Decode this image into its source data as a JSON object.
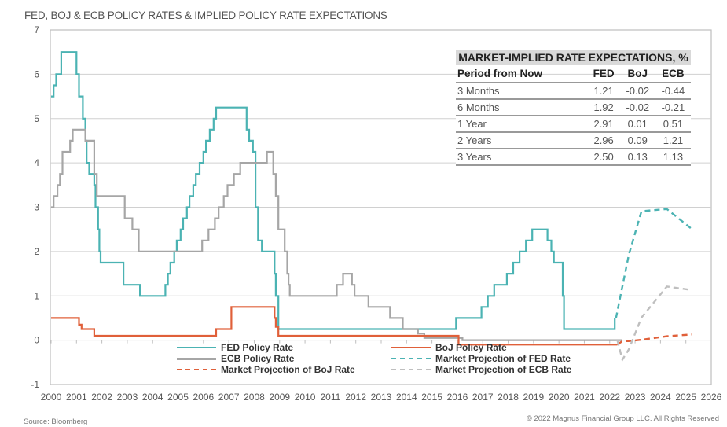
{
  "title": "FED, BOJ & ECB POLICY RATES & IMPLIED POLICY RATE EXPECTATIONS",
  "source": "Source: Bloomberg",
  "copyright": "© 2022 Magnus Financial Group LLC. All Rights Reserved",
  "colors": {
    "fed": "#4bb3b3",
    "ecb": "#a6a6a6",
    "boj": "#e0603a",
    "grid": "#d0d0d0",
    "axis": "#bfbfbf"
  },
  "table": {
    "title": "MARKET-IMPLIED RATE EXPECTATIONS, %",
    "columns": [
      "Period from Now",
      "FED",
      "BoJ",
      "ECB"
    ],
    "rows": [
      [
        "3 Months",
        "1.21",
        "-0.02",
        "-0.44"
      ],
      [
        "6 Months",
        "1.92",
        "-0.02",
        "-0.21"
      ],
      [
        "1 Year",
        "2.91",
        "0.01",
        "0.51"
      ],
      [
        "2 Years",
        "2.96",
        "0.09",
        "1.21"
      ],
      [
        "3 Years",
        "2.50",
        "0.13",
        "1.13"
      ]
    ]
  },
  "chart_data": {
    "type": "line",
    "title": "FED, BOJ & ECB POLICY RATES & IMPLIED POLICY RATE EXPECTATIONS",
    "xlabel": "",
    "ylabel": "",
    "xlim": [
      2000,
      2026
    ],
    "ylim": [
      -1,
      7
    ],
    "x_ticks": [
      "2000",
      "2001",
      "2002",
      "2003",
      "2004",
      "2005",
      "2006",
      "2007",
      "2008",
      "2009",
      "2010",
      "2011",
      "2012",
      "2013",
      "2014",
      "2015",
      "2016",
      "2017",
      "2018",
      "2019",
      "2020",
      "2021",
      "2022",
      "2023",
      "2024",
      "2025",
      "2026"
    ],
    "y_ticks": [
      "7",
      "6",
      "5",
      "4",
      "3",
      "2",
      "1",
      "0",
      "-1"
    ],
    "y_tick_values": [
      7,
      6,
      5,
      4,
      3,
      2,
      1,
      0,
      -1
    ],
    "grid": true,
    "legend": {
      "placement": "bottom-center",
      "entries": [
        "FED Policy Rate",
        "BoJ Policy Rate",
        "ECB Policy Rate",
        "Market Projection of FED Rate",
        "Market Projection of BoJ Rate",
        "Market Projection of ECB Rate"
      ]
    },
    "series": [
      {
        "name": "FED Policy Rate",
        "style": "step",
        "color": "#4bb3b3",
        "points": [
          [
            2000.0,
            5.5
          ],
          [
            2000.1,
            5.75
          ],
          [
            2000.2,
            6.0
          ],
          [
            2000.4,
            6.5
          ],
          [
            2001.0,
            6.0
          ],
          [
            2001.1,
            5.5
          ],
          [
            2001.25,
            5.0
          ],
          [
            2001.35,
            4.5
          ],
          [
            2001.4,
            4.0
          ],
          [
            2001.5,
            3.75
          ],
          [
            2001.7,
            3.5
          ],
          [
            2001.75,
            3.0
          ],
          [
            2001.85,
            2.5
          ],
          [
            2001.9,
            2.0
          ],
          [
            2001.95,
            1.75
          ],
          [
            2002.85,
            1.25
          ],
          [
            2003.5,
            1.0
          ],
          [
            2004.5,
            1.25
          ],
          [
            2004.6,
            1.5
          ],
          [
            2004.7,
            1.75
          ],
          [
            2004.85,
            2.0
          ],
          [
            2004.95,
            2.25
          ],
          [
            2005.1,
            2.5
          ],
          [
            2005.2,
            2.75
          ],
          [
            2005.35,
            3.0
          ],
          [
            2005.45,
            3.25
          ],
          [
            2005.6,
            3.5
          ],
          [
            2005.7,
            3.75
          ],
          [
            2005.85,
            4.0
          ],
          [
            2006.0,
            4.25
          ],
          [
            2006.1,
            4.5
          ],
          [
            2006.25,
            4.75
          ],
          [
            2006.4,
            5.0
          ],
          [
            2006.5,
            5.25
          ],
          [
            2007.7,
            4.75
          ],
          [
            2007.8,
            4.5
          ],
          [
            2007.95,
            4.25
          ],
          [
            2008.05,
            3.0
          ],
          [
            2008.15,
            2.25
          ],
          [
            2008.3,
            2.0
          ],
          [
            2008.8,
            1.5
          ],
          [
            2008.85,
            1.0
          ],
          [
            2008.95,
            0.25
          ],
          [
            2015.95,
            0.5
          ],
          [
            2016.95,
            0.75
          ],
          [
            2017.2,
            1.0
          ],
          [
            2017.45,
            1.25
          ],
          [
            2017.95,
            1.5
          ],
          [
            2018.2,
            1.75
          ],
          [
            2018.45,
            2.0
          ],
          [
            2018.7,
            2.25
          ],
          [
            2018.95,
            2.5
          ],
          [
            2019.55,
            2.25
          ],
          [
            2019.7,
            2.0
          ],
          [
            2019.8,
            1.75
          ],
          [
            2020.15,
            1.0
          ],
          [
            2020.2,
            0.25
          ],
          [
            2022.2,
            0.5
          ]
        ]
      },
      {
        "name": "ECB Policy Rate",
        "style": "step",
        "color": "#a6a6a6",
        "points": [
          [
            2000.0,
            3.0
          ],
          [
            2000.1,
            3.25
          ],
          [
            2000.25,
            3.5
          ],
          [
            2000.35,
            3.75
          ],
          [
            2000.45,
            4.25
          ],
          [
            2000.75,
            4.5
          ],
          [
            2000.85,
            4.75
          ],
          [
            2001.35,
            4.5
          ],
          [
            2001.7,
            3.75
          ],
          [
            2001.8,
            3.25
          ],
          [
            2002.9,
            2.75
          ],
          [
            2003.2,
            2.5
          ],
          [
            2003.45,
            2.0
          ],
          [
            2005.95,
            2.25
          ],
          [
            2006.2,
            2.5
          ],
          [
            2006.45,
            2.75
          ],
          [
            2006.6,
            3.0
          ],
          [
            2006.8,
            3.25
          ],
          [
            2006.95,
            3.5
          ],
          [
            2007.2,
            3.75
          ],
          [
            2007.45,
            4.0
          ],
          [
            2008.5,
            4.25
          ],
          [
            2008.75,
            3.75
          ],
          [
            2008.85,
            3.25
          ],
          [
            2008.95,
            2.5
          ],
          [
            2009.2,
            2.0
          ],
          [
            2009.3,
            1.5
          ],
          [
            2009.35,
            1.25
          ],
          [
            2009.4,
            1.0
          ],
          [
            2011.25,
            1.25
          ],
          [
            2011.5,
            1.5
          ],
          [
            2011.85,
            1.25
          ],
          [
            2011.95,
            1.0
          ],
          [
            2012.5,
            0.75
          ],
          [
            2013.35,
            0.5
          ],
          [
            2013.85,
            0.25
          ],
          [
            2014.45,
            0.15
          ],
          [
            2014.7,
            0.05
          ],
          [
            2016.2,
            0.0
          ],
          [
            2022.5,
            0.0
          ]
        ]
      },
      {
        "name": "BoJ Policy Rate",
        "style": "step",
        "color": "#e0603a",
        "points": [
          [
            2000.0,
            0.5
          ],
          [
            2001.1,
            0.35
          ],
          [
            2001.2,
            0.25
          ],
          [
            2001.7,
            0.1
          ],
          [
            2006.5,
            0.25
          ],
          [
            2007.1,
            0.75
          ],
          [
            2008.8,
            0.5
          ],
          [
            2008.85,
            0.3
          ],
          [
            2008.95,
            0.1
          ],
          [
            2016.05,
            -0.1
          ],
          [
            2022.3,
            -0.1
          ]
        ]
      },
      {
        "name": "Market Projection of FED Rate",
        "style": "dashed",
        "color": "#4bb3b3",
        "points": [
          [
            2022.25,
            0.5
          ],
          [
            2022.5,
            1.21
          ],
          [
            2022.75,
            1.92
          ],
          [
            2023.25,
            2.91
          ],
          [
            2024.25,
            2.96
          ],
          [
            2025.25,
            2.5
          ]
        ]
      },
      {
        "name": "Market Projection of BoJ Rate",
        "style": "dashed",
        "color": "#e0603a",
        "points": [
          [
            2022.3,
            -0.1
          ],
          [
            2022.5,
            -0.02
          ],
          [
            2022.75,
            -0.02
          ],
          [
            2023.25,
            0.01
          ],
          [
            2024.25,
            0.09
          ],
          [
            2025.25,
            0.13
          ]
        ]
      },
      {
        "name": "Market Projection of ECB Rate",
        "style": "dashed",
        "color": "#bfbfbf",
        "points": [
          [
            2022.3,
            0.0
          ],
          [
            2022.5,
            -0.44
          ],
          [
            2022.75,
            -0.21
          ],
          [
            2023.25,
            0.51
          ],
          [
            2024.25,
            1.21
          ],
          [
            2025.25,
            1.13
          ]
        ]
      }
    ]
  }
}
